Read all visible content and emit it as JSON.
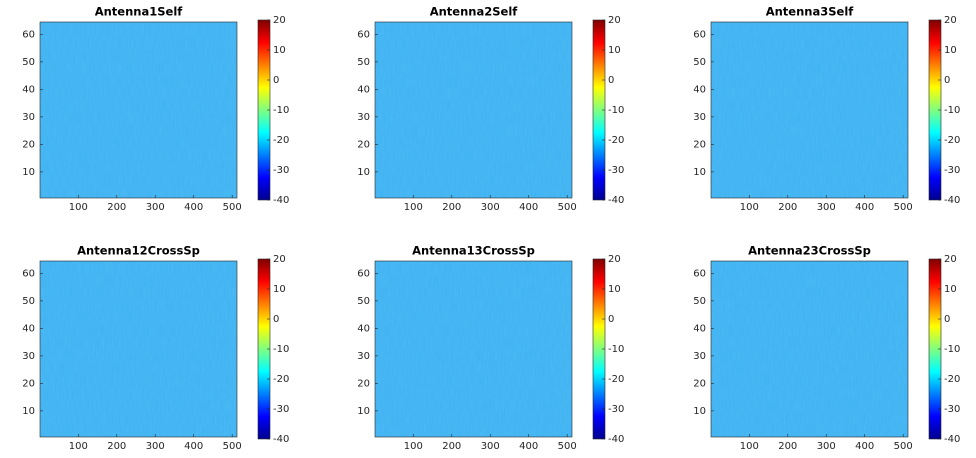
{
  "chart_data": [
    {
      "type": "heatmap",
      "title": "Antenna1Self",
      "xlim": [
        0.5,
        512.5
      ],
      "ylim": [
        0.5,
        64.5
      ],
      "xticks": [
        100,
        200,
        300,
        400,
        500
      ],
      "yticks": [
        10,
        20,
        30,
        40,
        50,
        60
      ],
      "colormap": "jet",
      "clim": [
        -40,
        20
      ],
      "cticks": [
        -40,
        -30,
        -20,
        -10,
        0,
        10,
        20
      ]
    },
    {
      "type": "heatmap",
      "title": "Antenna2Self",
      "xlim": [
        0.5,
        512.5
      ],
      "ylim": [
        0.5,
        64.5
      ],
      "xticks": [
        100,
        200,
        300,
        400,
        500
      ],
      "yticks": [
        10,
        20,
        30,
        40,
        50,
        60
      ],
      "colormap": "jet",
      "clim": [
        -40,
        20
      ],
      "cticks": [
        -40,
        -30,
        -20,
        -10,
        0,
        10,
        20
      ]
    },
    {
      "type": "heatmap",
      "title": "Antenna3Self",
      "xlim": [
        0.5,
        512.5
      ],
      "ylim": [
        0.5,
        64.5
      ],
      "xticks": [
        100,
        200,
        300,
        400,
        500
      ],
      "yticks": [
        10,
        20,
        30,
        40,
        50,
        60
      ],
      "colormap": "jet",
      "clim": [
        -40,
        20
      ],
      "cticks": [
        -40,
        -30,
        -20,
        -10,
        0,
        10,
        20
      ]
    },
    {
      "type": "heatmap",
      "title": "Antenna12CrossSp",
      "xlim": [
        0.5,
        512.5
      ],
      "ylim": [
        0.5,
        64.5
      ],
      "xticks": [
        100,
        200,
        300,
        400,
        500
      ],
      "yticks": [
        10,
        20,
        30,
        40,
        50,
        60
      ],
      "colormap": "jet",
      "clim": [
        -40,
        20
      ],
      "cticks": [
        -40,
        -30,
        -20,
        -10,
        0,
        10,
        20
      ]
    },
    {
      "type": "heatmap",
      "title": "Antenna13CrossSp",
      "xlim": [
        0.5,
        512.5
      ],
      "ylim": [
        0.5,
        64.5
      ],
      "xticks": [
        100,
        200,
        300,
        400,
        500
      ],
      "yticks": [
        10,
        20,
        30,
        40,
        50,
        60
      ],
      "colormap": "jet",
      "clim": [
        -40,
        20
      ],
      "cticks": [
        -40,
        -30,
        -20,
        -10,
        0,
        10,
        20
      ]
    },
    {
      "type": "heatmap",
      "title": "Antenna23CrossSp",
      "xlim": [
        0.5,
        512.5
      ],
      "ylim": [
        0.5,
        64.5
      ],
      "xticks": [
        100,
        200,
        300,
        400,
        500
      ],
      "yticks": [
        10,
        20,
        30,
        40,
        50,
        60
      ],
      "colormap": "jet",
      "clim": [
        -40,
        20
      ],
      "cticks": [
        -40,
        -30,
        -20,
        -10,
        0,
        10,
        20
      ]
    }
  ]
}
